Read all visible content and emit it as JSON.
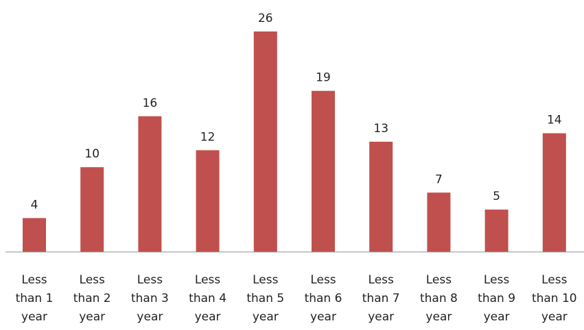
{
  "chart_data": {
    "type": "bar",
    "categories": [
      "Less than 1 year",
      "Less than 2 year",
      "Less than 3 year",
      "Less than 4 year",
      "Less than 5 year",
      "Less than 6 year",
      "Less than 7 year",
      "Less than 8 year",
      "Less than 9 year",
      "Less than 10 year"
    ],
    "category_lines": [
      [
        "Less",
        "than 1",
        "year"
      ],
      [
        "Less",
        "than 2",
        "year"
      ],
      [
        "Less",
        "than 3",
        "year"
      ],
      [
        "Less",
        "than 4",
        "year"
      ],
      [
        "Less",
        "than 5",
        "year"
      ],
      [
        "Less",
        "than 6",
        "year"
      ],
      [
        "Less",
        "than 7",
        "year"
      ],
      [
        "Less",
        "than 8",
        "year"
      ],
      [
        "Less",
        "than 9",
        "year"
      ],
      [
        "Less",
        "than 10",
        "year"
      ]
    ],
    "values": [
      4,
      10,
      16,
      12,
      26,
      19,
      13,
      7,
      5,
      14
    ],
    "data_labels": [
      "4",
      "10",
      "16",
      "12",
      "26",
      "19",
      "13",
      "7",
      "5",
      "14"
    ],
    "title": "",
    "xlabel": "",
    "ylabel": "",
    "ylim": [
      0,
      26
    ],
    "grid": false,
    "legend": "none",
    "bar_color": "#c0504d"
  }
}
